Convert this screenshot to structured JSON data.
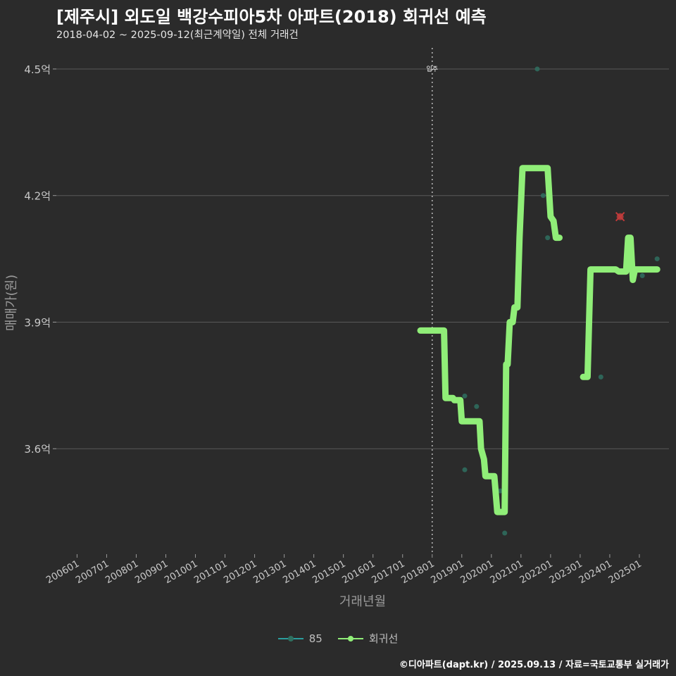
{
  "title": "[제주시] 외도일 백강수피아5차 아파트(2018) 회귀선 예측",
  "subtitle": "2018-04-02 ~ 2025-09-12(최근계약일) 전체 거래건",
  "caption": "©디아파트(dapt.kr) / 2025.09.13 / 자료=국토교통부 실거래가",
  "colors": {
    "background": "#2b2b2b",
    "grid": "#5a5a5a",
    "regression": "#90ee78",
    "points": "#2f7060",
    "marker": "#c43a3a",
    "vline": "#bbbbbb",
    "series85": "#2a9d9d"
  },
  "legend": [
    {
      "label": "85",
      "color": "#2a9d9d"
    },
    {
      "label": "회귀선",
      "color": "#90ee78"
    }
  ],
  "chart_data": {
    "type": "line",
    "xlabel": "거래년월",
    "ylabel": "매매가(원)",
    "y_unit": "억",
    "ylim": [
      3.35,
      4.55
    ],
    "y_ticks": [
      3.6,
      3.9,
      4.2,
      4.5
    ],
    "y_tick_labels": [
      "3.6억",
      "3.9억",
      "4.2억",
      "4.5억"
    ],
    "xlim": [
      2005.3,
      2026.0
    ],
    "x_ticks": [
      2006,
      2007,
      2008,
      2009,
      2010,
      2011,
      2012,
      2013,
      2014,
      2015,
      2016,
      2017,
      2018,
      2019,
      2020,
      2021,
      2022,
      2023,
      2024,
      2025
    ],
    "x_tick_labels": [
      "200601",
      "200701",
      "200801",
      "200901",
      "201001",
      "201101",
      "201201",
      "201301",
      "201401",
      "201501",
      "201601",
      "201701",
      "201801",
      "201901",
      "202001",
      "202101",
      "202201",
      "202301",
      "202401",
      "202501"
    ],
    "annotation": {
      "x": 2018.0,
      "label": "입주"
    },
    "series": [
      {
        "name": "회귀선",
        "segments": [
          [
            [
              2017.6,
              3.88
            ],
            [
              2018.4,
              3.88
            ],
            [
              2018.45,
              3.72
            ],
            [
              2018.7,
              3.72
            ],
            [
              2018.75,
              3.715
            ],
            [
              2018.95,
              3.715
            ],
            [
              2019.0,
              3.665
            ],
            [
              2019.6,
              3.665
            ],
            [
              2019.65,
              3.6
            ],
            [
              2019.75,
              3.575
            ],
            [
              2019.8,
              3.535
            ],
            [
              2020.1,
              3.535
            ],
            [
              2020.2,
              3.45
            ],
            [
              2020.45,
              3.45
            ],
            [
              2020.5,
              3.8
            ],
            [
              2020.55,
              3.8
            ],
            [
              2020.62,
              3.9
            ],
            [
              2020.72,
              3.9
            ],
            [
              2020.78,
              3.935
            ],
            [
              2020.88,
              3.935
            ],
            [
              2020.95,
              4.1
            ],
            [
              2021.05,
              4.265
            ],
            [
              2021.9,
              4.265
            ],
            [
              2022.0,
              4.15
            ],
            [
              2022.1,
              4.14
            ],
            [
              2022.18,
              4.1
            ],
            [
              2022.3,
              4.1
            ]
          ],
          [
            [
              2023.1,
              3.77
            ],
            [
              2023.25,
              3.77
            ],
            [
              2023.35,
              4.025
            ],
            [
              2024.2,
              4.025
            ],
            [
              2024.3,
              4.02
            ],
            [
              2024.55,
              4.02
            ],
            [
              2024.62,
              4.1
            ],
            [
              2024.7,
              4.1
            ],
            [
              2024.78,
              4.0
            ],
            [
              2024.85,
              4.025
            ],
            [
              2025.6,
              4.025
            ]
          ]
        ]
      },
      {
        "name": "85",
        "points": [
          [
            2019.1,
            3.725
          ],
          [
            2019.1,
            3.55
          ],
          [
            2019.5,
            3.7
          ],
          [
            2020.3,
            3.5
          ],
          [
            2020.45,
            3.4
          ],
          [
            2021.55,
            4.5
          ],
          [
            2021.75,
            4.2
          ],
          [
            2021.9,
            4.1
          ],
          [
            2023.7,
            3.77
          ],
          [
            2024.35,
            4.15
          ],
          [
            2025.1,
            4.01
          ],
          [
            2025.6,
            4.05
          ]
        ]
      }
    ],
    "highlight_point": [
      2024.35,
      4.15
    ]
  }
}
